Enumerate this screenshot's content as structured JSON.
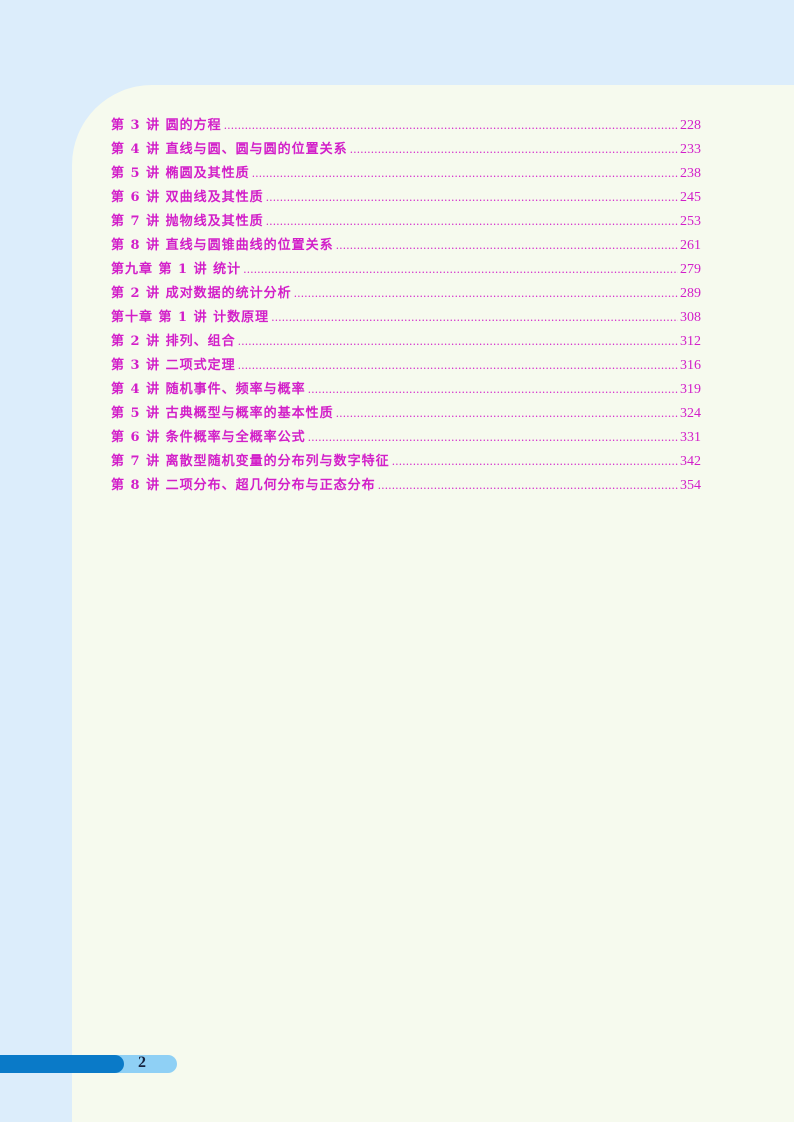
{
  "toc": [
    {
      "title": "第 3 讲 圆的方程",
      "page": "228"
    },
    {
      "title": "第 4 讲 直线与圆、圆与圆的位置关系",
      "page": "233"
    },
    {
      "title": "第 5 讲 椭圆及其性质",
      "page": "238"
    },
    {
      "title": "第 6 讲 双曲线及其性质",
      "page": "245"
    },
    {
      "title": "第 7 讲 抛物线及其性质",
      "page": "253"
    },
    {
      "title": "第 8 讲 直线与圆锥曲线的位置关系",
      "page": "261"
    },
    {
      "title": "第九章 第 1 讲 统计",
      "page": "279"
    },
    {
      "title": "第 2 讲 成对数据的统计分析",
      "page": "289"
    },
    {
      "title": "第十章 第 1 讲 计数原理",
      "page": "308"
    },
    {
      "title": "第 2 讲 排列、组合",
      "page": "312"
    },
    {
      "title": "第 3 讲 二项式定理",
      "page": "316"
    },
    {
      "title": "第 4 讲 随机事件、频率与概率",
      "page": "319"
    },
    {
      "title": "第 5 讲 古典概型与概率的基本性质",
      "page": "324"
    },
    {
      "title": "第 6 讲 条件概率与全概率公式",
      "page": "331"
    },
    {
      "title": "第 7 讲 离散型随机变量的分布列与数字特征",
      "page": "342"
    },
    {
      "title": "第 8 讲 二项分布、超几何分布与正态分布",
      "page": "354"
    }
  ],
  "page_number": "2",
  "colors": {
    "text": "#d21fc9",
    "background": "#dcedfb",
    "panel": "#f6faee",
    "bar": "#0a7ac8",
    "pill": "#8fd0f5"
  }
}
